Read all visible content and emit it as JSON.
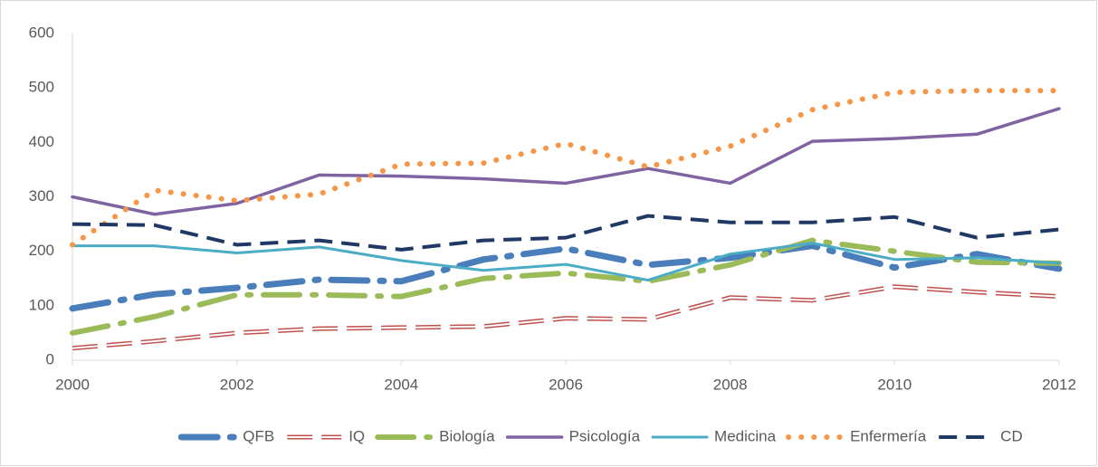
{
  "chart_data": {
    "type": "line",
    "x": [
      2000,
      2001,
      2002,
      2003,
      2004,
      2005,
      2006,
      2007,
      2008,
      2009,
      2010,
      2011,
      2012
    ],
    "series": [
      {
        "name": "QFB",
        "color": "#4a7ebb",
        "values": [
          95,
          121,
          133,
          148,
          145,
          185,
          205,
          175,
          188,
          210,
          170,
          195,
          168
        ]
      },
      {
        "name": "IQ",
        "color": "#c0504d",
        "values": [
          22,
          35,
          50,
          58,
          60,
          62,
          77,
          75,
          115,
          110,
          135,
          125,
          117
        ]
      },
      {
        "name": "Biología",
        "color": "#9bbb59",
        "values": [
          50,
          80,
          120,
          120,
          117,
          150,
          160,
          145,
          175,
          220,
          200,
          180,
          178
        ]
      },
      {
        "name": "Psicología",
        "color": "#8064a2",
        "values": [
          300,
          268,
          288,
          340,
          338,
          333,
          325,
          352,
          325,
          402,
          407,
          415,
          462
        ]
      },
      {
        "name": "Medicina",
        "color": "#4bacc6",
        "values": [
          210,
          210,
          197,
          208,
          183,
          165,
          176,
          147,
          195,
          215,
          185,
          188,
          178
        ]
      },
      {
        "name": "Enfermería",
        "color": "#f79646",
        "values": [
          212,
          312,
          293,
          305,
          360,
          362,
          398,
          355,
          393,
          460,
          492,
          495,
          495
        ]
      },
      {
        "name": "CD",
        "color": "#1f3864",
        "values": [
          250,
          248,
          212,
          220,
          203,
          220,
          225,
          265,
          253,
          253,
          263,
          225,
          240
        ]
      }
    ],
    "xlim": [
      2000,
      2012
    ],
    "xticks": [
      2000,
      2002,
      2004,
      2006,
      2008,
      2010,
      2012
    ],
    "ylim": [
      0,
      600
    ],
    "yticks": [
      0,
      100,
      200,
      300,
      400,
      500,
      600
    ],
    "grid": false,
    "legend": "bottom"
  }
}
